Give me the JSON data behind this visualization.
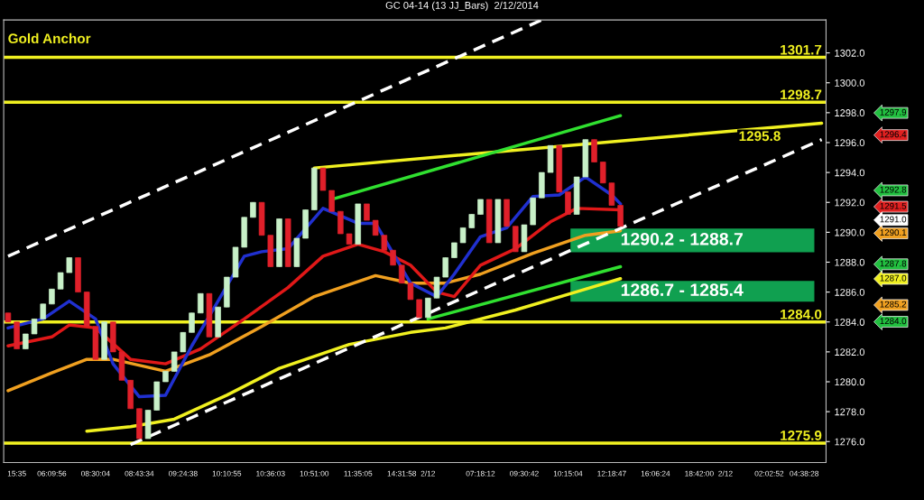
{
  "chart_data": {
    "type": "candlestick",
    "title": "GC 04-14 (13 JJ_Bars)  2/12/2014",
    "annotations": [
      "Gold Anchor",
      "1295.8",
      "1297.9",
      "1296.4",
      "1292.8",
      "1291.5",
      "1291.0",
      "1290.1",
      "1287.8",
      "1287.0",
      "1285.2",
      "1284.0"
    ],
    "categories": [
      null,
      "15:35",
      null,
      null,
      null,
      "06:09:56",
      null,
      null,
      null,
      null,
      "08:30:04",
      null,
      null,
      null,
      null,
      "08:43:34",
      null,
      null,
      null,
      null,
      "09:24:38",
      null,
      null,
      null,
      null,
      "10:10:55",
      null,
      null,
      null,
      null,
      "10:36:03",
      null,
      null,
      null,
      null,
      "10:51:00",
      null,
      null,
      null,
      null,
      "11:35:05",
      null,
      null,
      null,
      null,
      "14:31:58",
      null,
      null,
      "2/12",
      null,
      null,
      null,
      null,
      null,
      "07:18:12",
      null,
      null,
      null,
      null,
      "09:30:42",
      null,
      null,
      null,
      null,
      "10:15:04",
      null,
      null,
      null,
      null,
      "12:18:47",
      null,
      null,
      null,
      null,
      "16:06:24",
      null,
      null,
      null,
      null,
      "18:42:00",
      null,
      null,
      "2/12",
      null,
      null,
      null,
      null,
      "02:02:52",
      null,
      null,
      null,
      "04:38:28",
      null,
      null
    ],
    "ohlc": [
      [
        1284.6,
        1284.6,
        1284.0,
        1284.0
      ],
      [
        1284.0,
        1284.0,
        1282.2,
        1282.2
      ],
      [
        1282.2,
        1283.2,
        1282.2,
        1283.2
      ],
      [
        1283.2,
        1284.2,
        1283.2,
        1284.2
      ],
      [
        1284.2,
        1285.2,
        1284.2,
        1285.2
      ],
      [
        1285.2,
        1286.2,
        1285.2,
        1286.2
      ],
      [
        1286.2,
        1287.3,
        1286.2,
        1287.3
      ],
      [
        1287.3,
        1288.3,
        1287.3,
        1288.3
      ],
      [
        1288.3,
        1288.3,
        1286.0,
        1286.0
      ],
      [
        1286.0,
        1286.0,
        1283.7,
        1283.7
      ],
      [
        1283.7,
        1283.7,
        1281.5,
        1281.5
      ],
      [
        1281.5,
        1284.0,
        1281.5,
        1284.0
      ],
      [
        1284.0,
        1284.0,
        1282.0,
        1282.0
      ],
      [
        1282.0,
        1282.0,
        1280.1,
        1280.1
      ],
      [
        1280.1,
        1280.1,
        1278.2,
        1278.2
      ],
      [
        1278.2,
        1278.2,
        1276.2,
        1276.2
      ],
      [
        1276.2,
        1278.1,
        1276.2,
        1278.1
      ],
      [
        1278.1,
        1280.0,
        1278.1,
        1280.0
      ],
      [
        1280.0,
        1280.7,
        1280.0,
        1280.7
      ],
      [
        1280.7,
        1282.0,
        1280.7,
        1282.0
      ],
      [
        1282.0,
        1283.3,
        1282.0,
        1283.3
      ],
      [
        1283.3,
        1284.6,
        1283.3,
        1284.6
      ],
      [
        1284.6,
        1285.9,
        1284.6,
        1285.9
      ],
      [
        1285.9,
        1285.9,
        1283.0,
        1283.0
      ],
      [
        1283.0,
        1285.0,
        1283.0,
        1285.0
      ],
      [
        1285.0,
        1287.0,
        1285.0,
        1287.0
      ],
      [
        1287.0,
        1289.0,
        1287.0,
        1289.0
      ],
      [
        1289.0,
        1291.0,
        1289.0,
        1291.0
      ],
      [
        1291.0,
        1292.0,
        1291.0,
        1292.0
      ],
      [
        1292.0,
        1292.0,
        1289.8,
        1289.8
      ],
      [
        1289.8,
        1289.8,
        1287.7,
        1287.7
      ],
      [
        1287.7,
        1290.9,
        1287.7,
        1290.9
      ],
      [
        1290.9,
        1290.9,
        1287.7,
        1287.7
      ],
      [
        1287.7,
        1289.6,
        1287.7,
        1289.6
      ],
      [
        1289.6,
        1291.5,
        1289.6,
        1291.5
      ],
      [
        1291.5,
        1294.3,
        1291.5,
        1294.3
      ],
      [
        1294.3,
        1294.3,
        1292.8,
        1292.8
      ],
      [
        1292.8,
        1292.8,
        1291.4,
        1291.4
      ],
      [
        1291.4,
        1291.4,
        1289.9,
        1289.9
      ],
      [
        1289.9,
        1289.9,
        1289.2,
        1289.2
      ],
      [
        1289.2,
        1291.9,
        1289.2,
        1291.9
      ],
      [
        1291.9,
        1291.9,
        1290.8,
        1290.8
      ],
      [
        1290.8,
        1290.8,
        1289.8,
        1289.8
      ],
      [
        1289.8,
        1289.8,
        1288.8,
        1288.8
      ],
      [
        1288.8,
        1288.8,
        1287.8,
        1287.8
      ],
      [
        1287.8,
        1287.8,
        1286.6,
        1286.6
      ],
      [
        1286.6,
        1286.6,
        1285.5,
        1285.5
      ],
      [
        1285.5,
        1285.5,
        1284.3,
        1284.3
      ],
      [
        1284.3,
        1285.6,
        1284.3,
        1285.6
      ],
      [
        1285.6,
        1287.0,
        1285.6,
        1287.0
      ],
      [
        1287.0,
        1288.3,
        1287.0,
        1288.3
      ],
      [
        1288.3,
        1289.3,
        1288.3,
        1289.3
      ],
      [
        1289.3,
        1290.3,
        1289.3,
        1290.3
      ],
      [
        1290.3,
        1291.2,
        1290.3,
        1291.2
      ],
      [
        1291.2,
        1292.2,
        1291.2,
        1292.2
      ],
      [
        1292.2,
        1292.2,
        1289.3,
        1289.3
      ],
      [
        1289.3,
        1292.2,
        1289.3,
        1292.2
      ],
      [
        1292.2,
        1292.2,
        1290.4,
        1290.4
      ],
      [
        1290.4,
        1290.4,
        1288.7,
        1288.7
      ],
      [
        1288.7,
        1290.5,
        1288.7,
        1290.5
      ],
      [
        1290.5,
        1292.3,
        1290.5,
        1292.3
      ],
      [
        1292.3,
        1294.0,
        1292.3,
        1294.0
      ],
      [
        1294.0,
        1295.8,
        1294.0,
        1295.8
      ],
      [
        1295.8,
        1295.8,
        1292.7,
        1292.7
      ],
      [
        1292.7,
        1292.7,
        1291.2,
        1291.2
      ],
      [
        1291.2,
        1293.7,
        1291.2,
        1293.7
      ],
      [
        1293.7,
        1296.2,
        1293.7,
        1296.2
      ],
      [
        1296.2,
        1296.2,
        1294.7,
        1294.7
      ],
      [
        1294.7,
        1294.7,
        1293.3,
        1293.3
      ],
      [
        1293.3,
        1293.3,
        1291.8,
        1291.8
      ],
      [
        1291.8,
        1291.8,
        1290.4,
        1290.4
      ],
      null,
      null,
      null,
      null,
      null,
      null,
      null,
      null,
      null,
      null,
      null,
      null,
      null,
      null,
      null,
      null,
      null,
      null,
      null,
      null,
      null,
      null,
      null
    ],
    "colors": [
      "#e0202a",
      "#e0202a",
      "#c8f0c8",
      "#c8f0c8",
      "#c8f0c8",
      "#c8f0c8",
      "#c8f0c8",
      "#c8f0c8",
      "#e0202a",
      "#e0202a",
      "#e0202a",
      "#c8f0c8",
      "#e0202a",
      "#e0202a",
      "#e0202a",
      "#e0202a",
      "#c8f0c8",
      "#c8f0c8",
      "#c8f0c8",
      "#c8f0c8",
      "#c8f0c8",
      "#c8f0c8",
      "#c8f0c8",
      "#e0202a",
      "#c8f0c8",
      "#c8f0c8",
      "#c8f0c8",
      "#c8f0c8",
      "#c8f0c8",
      "#e0202a",
      "#e0202a",
      "#c8f0c8",
      "#e0202a",
      "#c8f0c8",
      "#c8f0c8",
      "#c8f0c8",
      "#e0202a",
      "#e0202a",
      "#e0202a",
      "#e0202a",
      "#c8f0c8",
      "#e0202a",
      "#e0202a",
      "#e0202a",
      "#e0202a",
      "#e0202a",
      "#e0202a",
      "#e0202a",
      "#c8f0c8",
      "#c8f0c8",
      "#c8f0c8",
      "#c8f0c8",
      "#c8f0c8",
      "#c8f0c8",
      "#c8f0c8",
      "#e0202a",
      "#c8f0c8",
      "#e0202a",
      "#e0202a",
      "#c8f0c8",
      "#c8f0c8",
      "#c8f0c8",
      "#c8f0c8",
      "#e0202a",
      "#e0202a",
      "#c8f0c8",
      "#c8f0c8",
      "#e0202a",
      "#e0202a",
      "#e0202a",
      "#e0202a",
      null,
      null,
      null,
      null,
      null,
      null,
      null,
      null,
      null,
      null,
      null,
      null,
      null,
      null,
      null,
      null,
      null,
      null,
      null,
      null,
      null,
      null,
      null
    ],
    "series": [
      {
        "type": "line",
        "color": "#f0f020",
        "values": [
          null,
          null,
          null,
          null,
          null,
          null,
          null,
          null,
          null,
          1276.7,
          null,
          null,
          null,
          null,
          1277.0,
          null,
          null,
          null,
          null,
          1277.5,
          null,
          null,
          null,
          null,
          null,
          1279.1,
          null,
          null,
          null,
          null,
          null,
          1280.9,
          null,
          null,
          null,
          null,
          null,
          null,
          null,
          1282.5,
          null,
          null,
          null,
          null,
          null,
          null,
          1283.3,
          null,
          null,
          null,
          1283.6,
          null,
          null,
          null,
          null,
          null,
          null,
          null,
          1284.8,
          null,
          null,
          null,
          null,
          null,
          null,
          null,
          1286.2,
          null,
          null,
          null,
          1286.9,
          null,
          null,
          null,
          null,
          null,
          null,
          null,
          null,
          null,
          null,
          null,
          null,
          null,
          null,
          null,
          null,
          null,
          null,
          null,
          null,
          null,
          null,
          null
        ]
      },
      {
        "type": "line",
        "color": "#f0a020",
        "values": [
          1279.4,
          null,
          null,
          null,
          null,
          1280.6,
          null,
          null,
          null,
          1281.5,
          null,
          null,
          1281.5,
          null,
          null,
          null,
          null,
          null,
          1280.7,
          null,
          null,
          null,
          null,
          1281.8,
          null,
          null,
          null,
          null,
          null,
          1283.7,
          null,
          null,
          null,
          null,
          null,
          1285.7,
          null,
          null,
          null,
          null,
          null,
          null,
          1287.1,
          null,
          null,
          null,
          1286.6,
          null,
          null,
          null,
          1286.6,
          null,
          null,
          null,
          1287.2,
          null,
          null,
          null,
          null,
          null,
          1288.6,
          null,
          null,
          null,
          null,
          null,
          1289.8,
          null,
          null,
          null,
          1290.1,
          null,
          null,
          null,
          null,
          null,
          null,
          null,
          null,
          null,
          null,
          null,
          null,
          null,
          null,
          null,
          null,
          null,
          null,
          null,
          null,
          null,
          null,
          null
        ]
      },
      {
        "type": "line",
        "color": "#e01818",
        "values": [
          1282.4,
          null,
          null,
          null,
          null,
          1283.0,
          null,
          1283.8,
          null,
          null,
          1283.6,
          null,
          null,
          null,
          1281.5,
          null,
          null,
          null,
          1281.2,
          null,
          null,
          null,
          1282.2,
          null,
          null,
          null,
          null,
          1284.2,
          null,
          null,
          null,
          null,
          1286.3,
          null,
          null,
          null,
          1288.4,
          null,
          null,
          null,
          1289.2,
          null,
          null,
          1288.7,
          null,
          null,
          1287.8,
          null,
          null,
          1286.0,
          null,
          1285.7,
          null,
          null,
          1287.8,
          null,
          null,
          null,
          1288.9,
          null,
          null,
          null,
          1290.7,
          null,
          null,
          1291.6,
          null,
          null,
          null,
          null,
          1291.5,
          null,
          null,
          null,
          null,
          null,
          null,
          null,
          null,
          null,
          null,
          null,
          null,
          null,
          null,
          null,
          null,
          null,
          null,
          null,
          null,
          null,
          null,
          null
        ]
      },
      {
        "type": "line",
        "color": "#2030d0",
        "values": [
          1283.6,
          null,
          null,
          null,
          1284.2,
          null,
          null,
          1285.4,
          null,
          null,
          1284.2,
          null,
          1281.2,
          null,
          null,
          1279.0,
          null,
          null,
          1279.1,
          null,
          null,
          1282.4,
          null,
          null,
          1285.4,
          null,
          null,
          1288.4,
          null,
          1288.7,
          null,
          null,
          1288.9,
          null,
          null,
          null,
          1291.6,
          null,
          null,
          null,
          1290.6,
          null,
          1290.6,
          null,
          null,
          null,
          1286.6,
          null,
          null,
          1285.7,
          null,
          1287.2,
          null,
          null,
          1289.7,
          null,
          null,
          1290.3,
          null,
          null,
          1292.4,
          null,
          null,
          1292.5,
          null,
          null,
          1293.7,
          null,
          null,
          1292.5,
          1291.9,
          null,
          null,
          null,
          null,
          null,
          null,
          null,
          null,
          null,
          null,
          null,
          null,
          null,
          null,
          null,
          null,
          null,
          null,
          null,
          null,
          null,
          null,
          null
        ]
      },
      {
        "type": "line",
        "color": "#ffffff",
        "line_style": "dashed",
        "values": [
          1288.4,
          null,
          null,
          null,
          null,
          null,
          null,
          null,
          null,
          null,
          null,
          null,
          null,
          null,
          null,
          null,
          null,
          null,
          null,
          null,
          null,
          null,
          null,
          null,
          null,
          null,
          null,
          null,
          null,
          null,
          null,
          null,
          null,
          null,
          null,
          null,
          null,
          null,
          null,
          null,
          null,
          null,
          null,
          null,
          null,
          null,
          null,
          null,
          null,
          null,
          null,
          null,
          null,
          null,
          null,
          null,
          null,
          null,
          null,
          null,
          null,
          1304.2,
          null,
          null,
          null,
          null,
          null,
          null,
          null,
          null,
          null,
          null,
          null,
          null,
          null,
          null,
          null,
          null,
          null,
          null,
          null,
          null,
          null,
          null,
          null,
          null,
          null,
          null,
          null,
          null,
          null,
          null,
          null,
          null
        ]
      },
      {
        "type": "line",
        "color": "#ffffff",
        "line_style": "dashed",
        "values": [
          null,
          null,
          null,
          null,
          null,
          null,
          null,
          null,
          null,
          null,
          null,
          null,
          null,
          null,
          1275.8,
          null,
          null,
          null,
          null,
          null,
          null,
          null,
          null,
          null,
          null,
          null,
          null,
          null,
          null,
          null,
          null,
          null,
          null,
          null,
          null,
          null,
          null,
          null,
          null,
          null,
          null,
          null,
          null,
          null,
          null,
          null,
          null,
          null,
          null,
          null,
          null,
          null,
          null,
          null,
          null,
          null,
          null,
          null,
          null,
          null,
          null,
          null,
          null,
          null,
          null,
          null,
          null,
          null,
          null,
          null,
          null,
          null,
          null,
          null,
          null,
          null,
          null,
          null,
          null,
          null,
          null,
          null,
          null,
          null,
          null,
          null,
          null,
          null,
          null,
          null,
          null,
          null,
          null,
          1296.2
        ]
      },
      {
        "type": "line",
        "color": "#f0f020",
        "values": [
          null,
          null,
          null,
          null,
          null,
          null,
          null,
          null,
          null,
          null,
          null,
          null,
          null,
          null,
          null,
          null,
          null,
          null,
          null,
          null,
          null,
          null,
          null,
          null,
          null,
          null,
          null,
          null,
          null,
          null,
          null,
          null,
          null,
          null,
          null,
          1294.3,
          null,
          null,
          null,
          null,
          null,
          null,
          null,
          null,
          null,
          null,
          null,
          null,
          null,
          null,
          null,
          null,
          null,
          null,
          null,
          null,
          null,
          null,
          null,
          null,
          null,
          null,
          null,
          null,
          null,
          null,
          null,
          null,
          null,
          null,
          null,
          null,
          null,
          null,
          null,
          null,
          null,
          null,
          null,
          null,
          null,
          null,
          null,
          null,
          null,
          null,
          null,
          null,
          null,
          null,
          null,
          null,
          null,
          1297.3
        ]
      },
      {
        "type": "line",
        "color": "#30e030",
        "values": [
          null,
          null,
          null,
          null,
          null,
          null,
          null,
          null,
          null,
          null,
          null,
          null,
          null,
          null,
          null,
          null,
          null,
          null,
          null,
          null,
          null,
          null,
          null,
          null,
          null,
          null,
          null,
          null,
          null,
          null,
          null,
          null,
          null,
          null,
          null,
          null,
          null,
          1292.2,
          null,
          null,
          null,
          null,
          null,
          null,
          null,
          null,
          null,
          null,
          null,
          null,
          null,
          null,
          null,
          null,
          null,
          null,
          null,
          null,
          null,
          null,
          null,
          null,
          null,
          null,
          null,
          null,
          null,
          null,
          null,
          null,
          1297.8,
          null,
          null,
          null,
          null,
          null,
          null,
          null,
          null,
          null,
          null,
          null,
          null,
          null,
          null,
          null,
          null,
          null,
          null,
          null,
          null,
          null,
          null,
          null
        ]
      },
      {
        "type": "line",
        "color": "#30e030",
        "values": [
          null,
          null,
          null,
          null,
          null,
          null,
          null,
          null,
          null,
          null,
          null,
          null,
          null,
          null,
          null,
          null,
          null,
          null,
          null,
          null,
          null,
          null,
          null,
          null,
          null,
          null,
          null,
          null,
          null,
          null,
          null,
          null,
          null,
          null,
          null,
          null,
          null,
          null,
          null,
          null,
          null,
          null,
          null,
          null,
          null,
          null,
          null,
          null,
          1284.2,
          null,
          null,
          null,
          null,
          null,
          null,
          null,
          null,
          null,
          null,
          null,
          null,
          null,
          null,
          null,
          null,
          null,
          null,
          null,
          null,
          null,
          1287.7,
          null,
          null,
          null,
          null,
          null,
          null,
          null,
          null,
          null,
          null,
          null,
          null,
          null,
          null,
          null,
          null,
          null,
          null,
          null,
          null,
          null,
          null,
          null
        ]
      }
    ],
    "ref_lines": [
      {
        "axis": "y",
        "value": 1301.7,
        "label": "1301.7",
        "color": "#f0f020"
      },
      {
        "axis": "y",
        "value": 1298.7,
        "label": "1298.7",
        "color": "#f0f020"
      },
      {
        "axis": "y",
        "value": 1284.0,
        "label": "1284.0",
        "color": "#f0f020"
      },
      {
        "axis": "y",
        "value": 1275.9,
        "label": "1275.9",
        "color": "#f0f020"
      }
    ],
    "bands": [
      {
        "axis": "y",
        "from": 1288.7,
        "to": 1290.2,
        "label": "1290.2 - 1288.7",
        "color": "#10a050"
      },
      {
        "axis": "y",
        "from": 1285.4,
        "to": 1286.7,
        "label": "1286.7 - 1285.4",
        "color": "#10a050"
      }
    ],
    "ylim": [
      1274.6,
      1304.2
    ],
    "yticks": [
      {
        "value": 1276,
        "label": "1276.0"
      },
      {
        "value": 1278,
        "label": "1278.0"
      },
      {
        "value": 1280,
        "label": "1280.0"
      },
      {
        "value": 1282,
        "label": "1282.0"
      },
      {
        "value": 1284,
        "label": "1284.0"
      },
      {
        "value": 1286,
        "label": "1286.0"
      },
      {
        "value": 1288,
        "label": "1288.0"
      },
      {
        "value": 1290,
        "label": "1290.0"
      },
      {
        "value": 1292,
        "label": "1292.0"
      },
      {
        "value": 1294,
        "label": "1294.0"
      },
      {
        "value": 1296,
        "label": "1296.0"
      },
      {
        "value": 1298,
        "label": "1298.0"
      },
      {
        "value": 1300,
        "label": "1300.0"
      },
      {
        "value": 1302,
        "label": "1302.0"
      }
    ],
    "grid": false,
    "legend": false
  }
}
